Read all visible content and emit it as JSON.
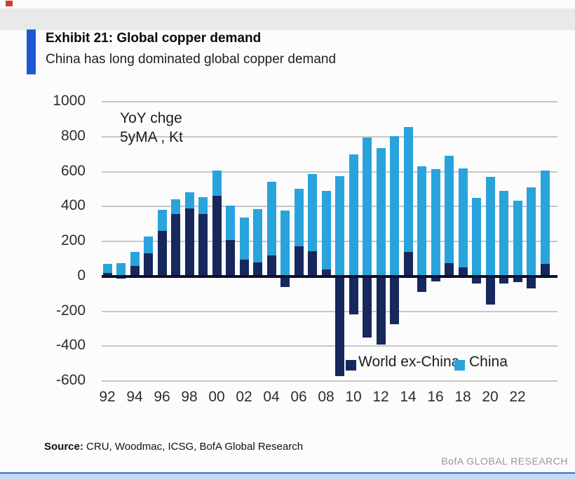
{
  "page": {
    "title": "Exhibit 21: Global copper demand",
    "subtitle": "China has long dominated global copper demand",
    "source_label": "Source:",
    "source_text": "CRU, Woodmac, ICSG, BofA Global Research",
    "footer_brand": "BofA GLOBAL RESEARCH"
  },
  "colors": {
    "world_ex_china": "#16285c",
    "china": "#29a3dc",
    "accent_bar": "#2057d3",
    "gridline": "#c6c6c6",
    "zero_line": "#0d102a"
  },
  "chart_data": {
    "type": "bar",
    "stacked": true,
    "annotation": [
      "YoY chge",
      "5yMA , Kt"
    ],
    "ylim": [
      -600,
      1000
    ],
    "ytick_step": 200,
    "ytick_labels": [
      "1000",
      "800",
      "600",
      "400",
      "200",
      "0",
      "-200",
      "-400",
      "-600"
    ],
    "x": [
      1992,
      1993,
      1994,
      1995,
      1996,
      1997,
      1998,
      1999,
      2000,
      2001,
      2002,
      2003,
      2004,
      2005,
      2006,
      2007,
      2008,
      2009,
      2010,
      2011,
      2012,
      2013,
      2014,
      2015,
      2016,
      2017,
      2018,
      2019,
      2020,
      2021,
      2022,
      2023,
      2024
    ],
    "xtick_labels": [
      "92",
      "94",
      "96",
      "98",
      "00",
      "02",
      "04",
      "06",
      "08",
      "10",
      "12",
      "14",
      "16",
      "18",
      "20",
      "22"
    ],
    "xtick_every": 2,
    "grid": true,
    "legend_position": "bottom-inside",
    "series": [
      {
        "name": "World ex-China",
        "color_key": "world_ex_china",
        "values": [
          20,
          -15,
          60,
          130,
          260,
          355,
          390,
          355,
          460,
          210,
          95,
          80,
          120,
          -60,
          170,
          145,
          40,
          -570,
          -220,
          -350,
          -390,
          -275,
          140,
          -90,
          -30,
          75,
          50,
          -40,
          -160,
          -40,
          -35,
          -70,
          70
        ]
      },
      {
        "name": "China",
        "color_key": "china",
        "values": [
          50,
          75,
          80,
          100,
          120,
          85,
          90,
          100,
          145,
          195,
          240,
          305,
          420,
          375,
          330,
          440,
          450,
          575,
          700,
          795,
          735,
          805,
          715,
          630,
          615,
          615,
          570,
          450,
          570,
          490,
          435,
          510,
          535
        ]
      }
    ]
  }
}
